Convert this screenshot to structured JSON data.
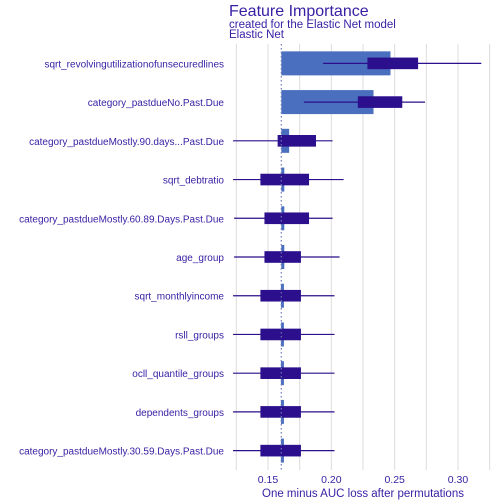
{
  "chart_data": {
    "type": "bar",
    "title": "Feature Importance",
    "subtitle": "created for the Elastic Net model",
    "facet_label": "Elastic Net",
    "xlabel": "One minus AUC loss after permutations",
    "ylabel": "",
    "xlim": [
      0.12,
      0.33
    ],
    "xticks": [
      0.15,
      0.2,
      0.25,
      0.3
    ],
    "xtick_labels": [
      "0.15",
      "0.20",
      "0.25",
      "0.30"
    ],
    "baseline": 0.1605,
    "grid": true,
    "colors": {
      "bar": "#4a6fbf",
      "box": "#2b0f8c",
      "text": "#371ea3",
      "baseline": "#6e79b4",
      "grid": "#dcdcdc"
    },
    "categories": [
      "sqrt_revolvingutilizationofunsecuredlines",
      "category_pastdueNo.Past.Due",
      "category_pastdueMostly.90.days...Past.Due",
      "sqrt_debtratio",
      "category_pastdueMostly.60.89.Days.Past.Due",
      "age_group",
      "sqrt_monthlyincome",
      "rsll_groups",
      "ocll_quantile_groups",
      "dependents_groups",
      "category_pastdueMostly.30.59.Days.Past.Due"
    ],
    "values": [
      0.2467,
      0.2333,
      0.1667,
      0.1624,
      0.1624,
      0.1615,
      0.1602,
      0.1602,
      0.1602,
      0.1602,
      0.1602
    ],
    "boxplots": [
      {
        "min": 0.1935,
        "q1": 0.2285,
        "q3": 0.2685,
        "max": 0.3184
      },
      {
        "min": 0.1783,
        "q1": 0.2209,
        "q3": 0.256,
        "max": 0.274
      },
      {
        "min": 0.1224,
        "q1": 0.1576,
        "q3": 0.1879,
        "max": 0.201
      },
      {
        "min": 0.1224,
        "q1": 0.144,
        "q3": 0.1824,
        "max": 0.2097
      },
      {
        "min": 0.1232,
        "q1": 0.1472,
        "q3": 0.1824,
        "max": 0.201
      },
      {
        "min": 0.1232,
        "q1": 0.1472,
        "q3": 0.176,
        "max": 0.2065
      },
      {
        "min": 0.1224,
        "q1": 0.144,
        "q3": 0.176,
        "max": 0.2025
      },
      {
        "min": 0.1224,
        "q1": 0.144,
        "q3": 0.176,
        "max": 0.2025
      },
      {
        "min": 0.1224,
        "q1": 0.144,
        "q3": 0.176,
        "max": 0.2025
      },
      {
        "min": 0.1224,
        "q1": 0.144,
        "q3": 0.176,
        "max": 0.2025
      },
      {
        "min": 0.1224,
        "q1": 0.144,
        "q3": 0.176,
        "max": 0.2025
      }
    ]
  }
}
